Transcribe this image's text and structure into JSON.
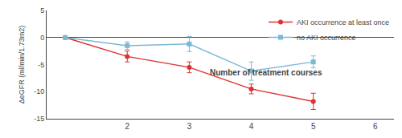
{
  "chart_data": {
    "type": "line",
    "ylabel": "ΔeGFR (ml/min/1.73m2)",
    "x": [
      1,
      2,
      3,
      4,
      5
    ],
    "series": [
      {
        "name": "AKI occurrence at least once",
        "color": "#e03030",
        "marker": "circle",
        "values": [
          0,
          -3.5,
          -5.5,
          -9.5,
          -11.8
        ],
        "yerr": [
          0,
          1.0,
          1.0,
          0.9,
          1.5
        ]
      },
      {
        "name": "no AKI occurrence",
        "color": "#7bb8d4",
        "marker": "square",
        "values": [
          0,
          -1.5,
          -1.2,
          -6.2,
          -4.5
        ],
        "yerr": [
          0,
          0.7,
          1.4,
          1.7,
          1.1
        ]
      }
    ],
    "xlim": [
      0.7,
      6.3
    ],
    "xticks": [
      2,
      3,
      4,
      5,
      6
    ],
    "ylim": [
      -15,
      5
    ],
    "yticks": [
      -15,
      -10,
      -5,
      0,
      5
    ],
    "annotations": [
      {
        "text": "Number of treatment courses",
        "x": 3.3,
        "y": -6.5
      }
    ],
    "legend": "upper right",
    "grid": false
  }
}
